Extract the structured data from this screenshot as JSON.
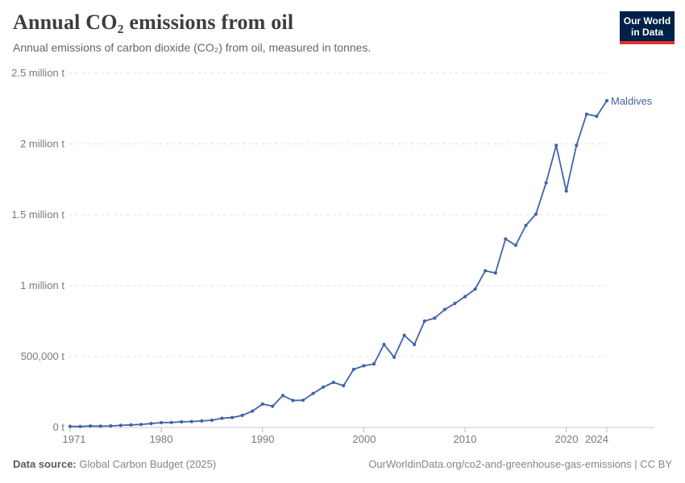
{
  "header": {
    "title": "Annual CO₂ emissions from oil",
    "subtitle": "Annual emissions of carbon dioxide (CO₂) from oil, measured in tonnes.",
    "logo": {
      "line1": "Our World",
      "line2": "in Data",
      "bg_color": "#002147",
      "accent_color": "#dd352e"
    }
  },
  "chart_data": {
    "type": "line",
    "title": "Annual CO₂ emissions from oil",
    "ylabel": "",
    "xlabel": "",
    "grid": "horizontal-dashed",
    "xlim": [
      1971,
      2024
    ],
    "ylim": [
      0,
      2500000
    ],
    "x_ticks": [
      1971,
      1980,
      1990,
      2000,
      2010,
      2020,
      2024
    ],
    "y_ticks": [
      {
        "value": 0,
        "label": "0 t"
      },
      {
        "value": 500000,
        "label": "500,000 t"
      },
      {
        "value": 1000000,
        "label": "1 million t"
      },
      {
        "value": 1500000,
        "label": "1.5 million t"
      },
      {
        "value": 2000000,
        "label": "2 million t"
      },
      {
        "value": 2500000,
        "label": "2.5 million t"
      }
    ],
    "series": [
      {
        "name": "Maldives",
        "color": "#4163a8",
        "x": [
          1971,
          1972,
          1973,
          1974,
          1975,
          1976,
          1977,
          1978,
          1979,
          1980,
          1981,
          1982,
          1983,
          1984,
          1985,
          1986,
          1987,
          1988,
          1989,
          1990,
          1991,
          1992,
          1993,
          1994,
          1995,
          1996,
          1997,
          1998,
          1999,
          2000,
          2001,
          2002,
          2003,
          2004,
          2005,
          2006,
          2007,
          2008,
          2009,
          2010,
          2011,
          2012,
          2013,
          2014,
          2015,
          2016,
          2017,
          2018,
          2019,
          2020,
          2021,
          2022,
          2023,
          2024
        ],
        "values": [
          8000,
          7000,
          10000,
          9000,
          11000,
          15000,
          18000,
          21000,
          28000,
          34000,
          35000,
          40000,
          42000,
          46000,
          51000,
          65000,
          70000,
          85000,
          115000,
          165000,
          150000,
          225000,
          190000,
          192000,
          240000,
          285000,
          318000,
          295000,
          410000,
          435000,
          448000,
          586000,
          495000,
          650000,
          585000,
          750000,
          772000,
          832000,
          875000,
          923000,
          976000,
          1105000,
          1090000,
          1330000,
          1285000,
          1425000,
          1505000,
          1725000,
          1990000,
          1668000,
          1990000,
          2210000,
          2195000,
          2305000
        ]
      }
    ]
  },
  "footer": {
    "source_label": "Data source:",
    "source_value": "Global Carbon Budget (2025)",
    "attribution": "OurWorldinData.org/co2-and-greenhouse-gas-emissions | CC BY"
  }
}
